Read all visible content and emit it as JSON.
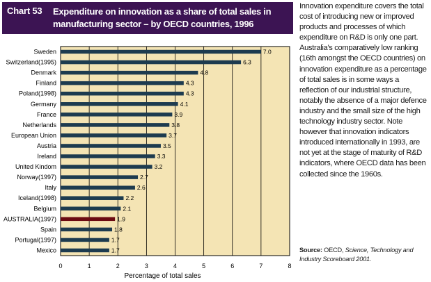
{
  "header": {
    "chart_number": "Chart 53",
    "title": "Expenditure on innovation as a share of total sales in manufacturing sector – by OECD countries, 1996"
  },
  "chart_data": {
    "type": "bar",
    "orientation": "horizontal",
    "title": "Expenditure on innovation as a share of total sales in manufacturing sector – by OECD countries, 1996",
    "xlabel": "Percentage of total sales",
    "ylabel": "",
    "xlim": [
      0,
      8
    ],
    "xticks": [
      "0",
      "1",
      "2",
      "3",
      "4",
      "5",
      "6",
      "7",
      "8"
    ],
    "grid": "vertical",
    "categories": [
      "Sweden",
      "Switzerland(1995)",
      "Denmark",
      "Finland",
      "Poland(1998)",
      "Germany",
      "France",
      "Netherlands",
      "European Union",
      "Austria",
      "Ireland",
      "United Kindom",
      "Norway(1997)",
      "Italy",
      "Iceland(1998)",
      "Belgium",
      "AUSTRALIA(1997)",
      "Spain",
      "Portugal(1997)",
      "Mexico"
    ],
    "values": [
      7.0,
      6.3,
      4.8,
      4.3,
      4.3,
      4.1,
      3.9,
      3.8,
      3.7,
      3.5,
      3.3,
      3.2,
      2.7,
      2.6,
      2.2,
      2.1,
      1.9,
      1.8,
      1.7,
      1.7
    ],
    "value_labels": [
      "7.0",
      "6.3",
      "4.8",
      "4.3",
      "4.3",
      "4.1",
      "3.9",
      "3.8",
      "3.7",
      "3.5",
      "3.3",
      "3.2",
      "2.7",
      "2.6",
      "2.2",
      "2.1",
      "1.9",
      "1.8",
      "1.7",
      "1.7"
    ],
    "highlight": "AUSTRALIA(1997)",
    "colors": {
      "bar": "#1d3b4f",
      "highlight_bar": "#6b0a12",
      "plot_background": "#f4e4b4",
      "header_background": "#3c1453"
    }
  },
  "side_text": "Innovation expenditure covers the total cost of introducing new or improved products and processes of which expenditure on R&D is only one part. Australia’s comparatively low ranking (16th amongst the OECD countries) on innovation expenditure as a percentage of total sales is in some ways a reflection of our industrial structure, notably the absence of a major defence industry and the small size of the high technology industry sector. Note however that innovation indicators introduced internationally in 1993, are not yet at the stage of maturity of R&D indicators, where OECD data has been collected since the 1960s.",
  "source": {
    "label": "Source:",
    "org": "OECD,",
    "publication": "Science, Technology and Industry Scoreboard 2001."
  }
}
